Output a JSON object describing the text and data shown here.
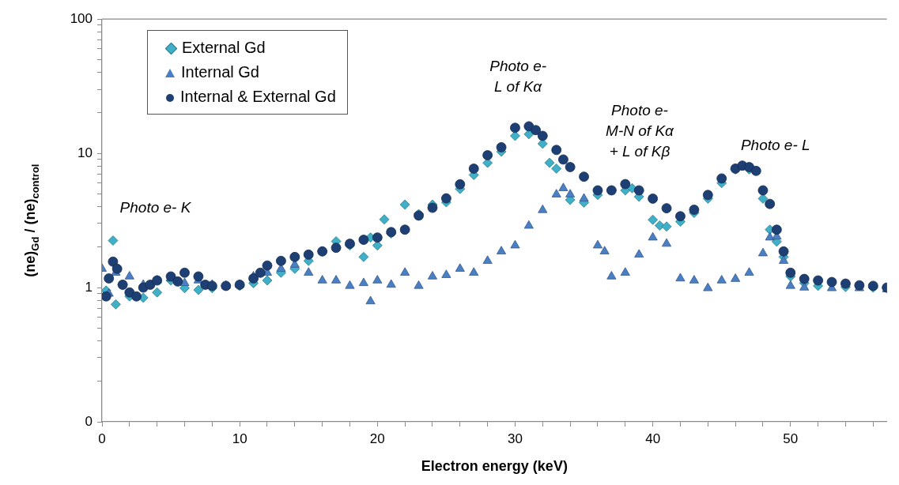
{
  "chart_data": {
    "type": "scatter",
    "xlabel": "Electron energy (keV)",
    "ylabel": "(ne)$_{Gd}$ / (ne)$_{control}$",
    "log": "y",
    "grid": false,
    "legend": "top left",
    "xlim": [
      0,
      57
    ],
    "ylim": [
      0.1,
      100
    ],
    "xticks": [
      0,
      {
        "value": 2,
        "label": null
      },
      {
        "value": 4,
        "label": null
      },
      {
        "value": 6,
        "label": null
      },
      {
        "value": 8,
        "label": null
      },
      10,
      {
        "value": 12,
        "label": null
      },
      {
        "value": 14,
        "label": null
      },
      {
        "value": 16,
        "label": null
      },
      {
        "value": 18,
        "label": null
      },
      20,
      {
        "value": 22,
        "label": null
      },
      {
        "value": 24,
        "label": null
      },
      {
        "value": 26,
        "label": null
      },
      {
        "value": 28,
        "label": null
      },
      30,
      {
        "value": 32,
        "label": null
      },
      {
        "value": 34,
        "label": null
      },
      {
        "value": 36,
        "label": null
      },
      {
        "value": 38,
        "label": null
      },
      40,
      {
        "value": 42,
        "label": null
      },
      {
        "value": 44,
        "label": null
      },
      {
        "value": 46,
        "label": null
      },
      {
        "value": 48,
        "label": null
      },
      50,
      {
        "value": 52,
        "label": null
      },
      {
        "value": 54,
        "label": null
      },
      {
        "value": 56,
        "label": null
      }
    ],
    "yticks": [
      {
        "value": 0.1,
        "label": "0"
      },
      {
        "value": 0.2,
        "label": null
      },
      {
        "value": 0.3,
        "label": null
      },
      {
        "value": 0.4,
        "label": null
      },
      {
        "value": 0.5,
        "label": null
      },
      {
        "value": 0.6,
        "label": null
      },
      {
        "value": 0.7,
        "label": null
      },
      {
        "value": 0.8,
        "label": null
      },
      {
        "value": 0.9,
        "label": null
      },
      1,
      {
        "value": 2,
        "label": null
      },
      {
        "value": 3,
        "label": null
      },
      {
        "value": 4,
        "label": null
      },
      {
        "value": 5,
        "label": null
      },
      {
        "value": 6,
        "label": null
      },
      {
        "value": 7,
        "label": null
      },
      {
        "value": 8,
        "label": null
      },
      {
        "value": 9,
        "label": null
      },
      10,
      {
        "value": 20,
        "label": null
      },
      {
        "value": 30,
        "label": null
      },
      {
        "value": 40,
        "label": null
      },
      {
        "value": 50,
        "label": null
      },
      {
        "value": 60,
        "label": null
      },
      {
        "value": 70,
        "label": null
      },
      {
        "value": 80,
        "label": null
      },
      {
        "value": 90,
        "label": null
      },
      100
    ],
    "annotations": [
      "Photo e- K",
      "Photo e-\nL of Kα",
      "Photo e-\nM-N of Kα\n+ L of Kβ",
      "Photo e- L"
    ],
    "series": [
      {
        "name": "External Gd",
        "color": "#3fb0c8",
        "marker": "diamond",
        "x": [
          0.3,
          0.8,
          1,
          1.5,
          2,
          3,
          4,
          5,
          6,
          7,
          8,
          9,
          10,
          11,
          12,
          13,
          14,
          15,
          16,
          17,
          18,
          19,
          19.5,
          20,
          20.5,
          21,
          22,
          23,
          24,
          25,
          26,
          27,
          28,
          29,
          30,
          31,
          32,
          32.5,
          33,
          34,
          35,
          36,
          37,
          38,
          38.5,
          39,
          40,
          40.5,
          41,
          42,
          43,
          44,
          45,
          46,
          47,
          48,
          48.5,
          49,
          49.5,
          50,
          51,
          52,
          54,
          56,
          57
        ],
        "values": [
          0.95,
          2.24,
          0.75,
          1.05,
          0.86,
          0.84,
          0.92,
          1.13,
          0.99,
          0.96,
          0.99,
          1.03,
          1.03,
          1.08,
          1.13,
          1.29,
          1.38,
          1.58,
          1.86,
          2.21,
          2.06,
          1.69,
          2.36,
          2.06,
          3.22,
          2.53,
          4.15,
          3.53,
          4.15,
          4.32,
          5.43,
          6.9,
          8.5,
          10.3,
          13.5,
          13.9,
          11.8,
          8.5,
          7.7,
          4.5,
          4.3,
          4.9,
          5.3,
          5.3,
          5.5,
          4.75,
          3.2,
          2.9,
          2.85,
          3.1,
          3.6,
          4.6,
          6.0,
          7.6,
          7.6,
          4.6,
          2.7,
          2.2,
          1.69,
          1.21,
          1.08,
          1.03,
          1.01,
          1.0,
          0.99
        ]
      },
      {
        "name": "Internal Gd",
        "color": "#4a7fc4",
        "marker": "triangle",
        "x": [
          0,
          0.5,
          1,
          2,
          3,
          4,
          5,
          6,
          7,
          8,
          9,
          10,
          11,
          12,
          13,
          14,
          15,
          16,
          17,
          18,
          19,
          19.5,
          20,
          21,
          22,
          23,
          24,
          25,
          26,
          27,
          28,
          29,
          30,
          31,
          32,
          33,
          33.5,
          34,
          35,
          36,
          36.5,
          37,
          38,
          39,
          40,
          41,
          42,
          43,
          44,
          45,
          46,
          47,
          48,
          48.5,
          49,
          49.5,
          50,
          51,
          53,
          55,
          57
        ],
        "values": [
          1.38,
          0.9,
          1.29,
          1.21,
          1.05,
          1.13,
          1.17,
          1.08,
          1.13,
          1.05,
          1.03,
          1.05,
          1.21,
          1.29,
          1.38,
          1.48,
          1.29,
          1.13,
          1.13,
          1.03,
          1.08,
          0.79,
          1.13,
          1.05,
          1.29,
          1.03,
          1.21,
          1.24,
          1.38,
          1.29,
          1.58,
          1.86,
          2.06,
          2.89,
          3.78,
          4.94,
          5.5,
          4.94,
          4.6,
          2.06,
          1.86,
          1.21,
          1.29,
          1.76,
          2.36,
          2.12,
          1.17,
          1.13,
          0.99,
          1.13,
          1.16,
          1.29,
          1.8,
          2.36,
          2.4,
          1.58,
          1.03,
          1.0,
          0.99,
          0.99,
          0.97
        ]
      },
      {
        "name": "Internal & External Gd",
        "color": "#1d3f73",
        "marker": "circle",
        "x": [
          0.3,
          0.5,
          0.8,
          1.1,
          1.5,
          2,
          2.5,
          3,
          3.5,
          4,
          5,
          5.5,
          6,
          7,
          7.5,
          8,
          9,
          10,
          11,
          11.5,
          12,
          13,
          14,
          15,
          16,
          17,
          18,
          19,
          20,
          21,
          22,
          23,
          24,
          25,
          26,
          27,
          28,
          29,
          30,
          31,
          31.5,
          32,
          33,
          33.5,
          34,
          35,
          36,
          37,
          38,
          39,
          40,
          41,
          42,
          43,
          44,
          45,
          46,
          46.5,
          47,
          47.5,
          48,
          48.5,
          49,
          49.5,
          50,
          51,
          52,
          53,
          54,
          55,
          56,
          57
        ],
        "values": [
          0.86,
          1.17,
          1.56,
          1.38,
          1.05,
          0.92,
          0.86,
          1.0,
          1.05,
          1.13,
          1.21,
          1.11,
          1.29,
          1.21,
          1.05,
          1.03,
          1.03,
          1.05,
          1.17,
          1.29,
          1.46,
          1.58,
          1.69,
          1.76,
          1.86,
          1.98,
          2.12,
          2.27,
          2.36,
          2.59,
          2.7,
          3.44,
          3.93,
          4.62,
          5.88,
          7.69,
          9.68,
          11.1,
          15.5,
          15.9,
          14.9,
          13.5,
          10.6,
          9.0,
          7.9,
          6.7,
          5.3,
          5.3,
          5.9,
          5.3,
          4.6,
          3.9,
          3.4,
          3.8,
          4.9,
          6.5,
          7.7,
          8.1,
          7.9,
          7.4,
          5.3,
          4.2,
          2.7,
          1.86,
          1.29,
          1.16,
          1.13,
          1.1,
          1.07,
          1.04,
          1.03,
          1.0
        ]
      }
    ]
  }
}
